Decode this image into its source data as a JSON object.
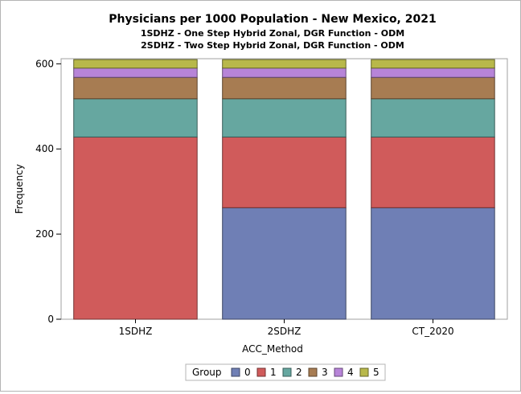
{
  "chart_data": {
    "type": "bar",
    "stacked": true,
    "title": "Physicians per 1000 Population - New Mexico, 2021",
    "subtitles": [
      "1SDHZ - One Step Hybrid Zonal, DGR Function - ODM",
      "2SDHZ - Two Step Hybrid Zonal, DGR Function - ODM"
    ],
    "xlabel": "ACC_Method",
    "ylabel": "Frequency",
    "categories": [
      "1SDHZ",
      "2SDHZ",
      "CT_2020"
    ],
    "ylim": [
      0,
      612
    ],
    "yticks": [
      0,
      200,
      400,
      600
    ],
    "grid": false,
    "legend_title": "Group",
    "legend_position": "bottom",
    "series": [
      {
        "name": "0",
        "color": "#6f7fb5",
        "values": [
          0,
          262,
          262
        ]
      },
      {
        "name": "1",
        "color": "#d05b5b",
        "values": [
          428,
          166,
          166
        ]
      },
      {
        "name": "2",
        "color": "#66a7a0",
        "values": [
          90,
          90,
          90
        ]
      },
      {
        "name": "3",
        "color": "#a77c52",
        "values": [
          50,
          50,
          50
        ]
      },
      {
        "name": "4",
        "color": "#b784d8",
        "values": [
          22,
          22,
          22
        ]
      },
      {
        "name": "5",
        "color": "#b8b84a",
        "values": [
          20,
          20,
          20
        ]
      }
    ]
  }
}
